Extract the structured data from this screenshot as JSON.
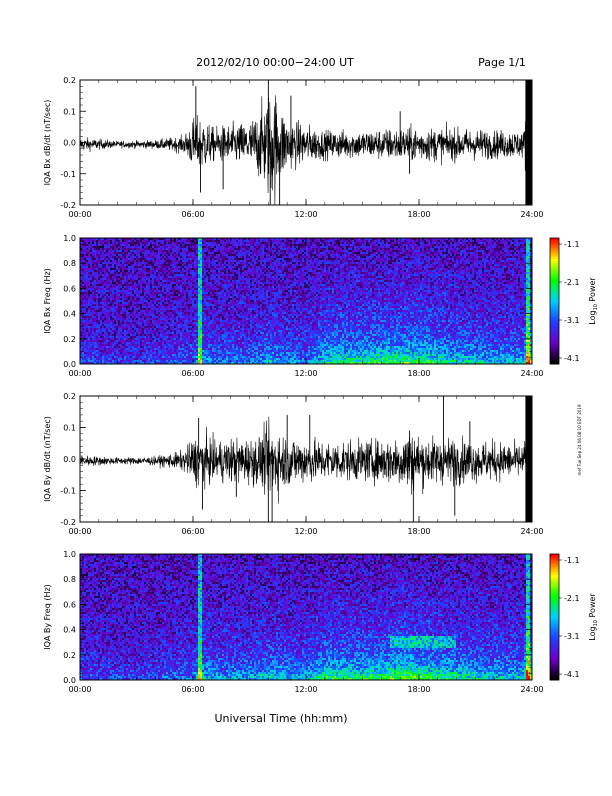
{
  "header": {
    "title": "2012/02/10   00:00−24:00 UT",
    "page": "Page 1/1"
  },
  "footer": {
    "xlabel": "Universal Time (hh:mm)",
    "side_note": "mef Tue Sep 24 06:08:10 EDT 2019"
  },
  "colorbar": {
    "label_base": "Log",
    "label_sub": "10",
    "label_rest": " Power",
    "ticks": [
      "-1.1",
      "-2.1",
      "-3.1",
      "-4.1"
    ],
    "colors": [
      "#ff0000",
      "#ffff00",
      "#00ff00",
      "#00cfff",
      "#2040ff",
      "#6a00c8",
      "#000000"
    ]
  },
  "chart_data": [
    {
      "type": "line",
      "ylabel": "IQA Bx dB/dt (nT/sec)",
      "xlim": [
        "00:00",
        "24:00"
      ],
      "ylim": [
        -0.2,
        0.2
      ],
      "xticks": [
        "00:00",
        "06:00",
        "12:00",
        "18:00",
        "24:00"
      ],
      "yticks": [
        "-0.2",
        "-0.1",
        "0.0",
        "0.1",
        "0.2"
      ],
      "ytick_values": [
        -0.2,
        -0.1,
        0.0,
        0.1,
        0.2
      ],
      "series_color": "#000000",
      "envelope": {
        "x_hours": [
          0,
          2,
          4,
          5.5,
          6.0,
          6.5,
          7,
          8,
          9,
          9.5,
          10,
          10.3,
          10.6,
          11,
          12,
          13,
          14,
          15,
          16,
          17,
          18,
          19,
          20,
          21,
          22,
          23,
          23.6,
          23.7,
          24
        ],
        "amplitude": [
          0.025,
          0.012,
          0.015,
          0.03,
          0.09,
          0.1,
          0.06,
          0.07,
          0.08,
          0.12,
          0.19,
          0.2,
          0.15,
          0.09,
          0.07,
          0.05,
          0.05,
          0.05,
          0.055,
          0.06,
          0.06,
          0.06,
          0.055,
          0.055,
          0.05,
          0.05,
          0.05,
          0.2,
          0.2
        ]
      },
      "spikes": [
        {
          "x_hours": 6.15,
          "y": 0.18
        },
        {
          "x_hours": 6.4,
          "y": -0.16
        },
        {
          "x_hours": 7.6,
          "y": -0.15
        },
        {
          "x_hours": 10.0,
          "y": 0.2
        },
        {
          "x_hours": 10.1,
          "y": -0.2
        },
        {
          "x_hours": 10.6,
          "y": -0.2
        },
        {
          "x_hours": 11.2,
          "y": 0.15
        },
        {
          "x_hours": 17.0,
          "y": 0.1
        },
        {
          "x_hours": 17.5,
          "y": -0.1
        }
      ]
    },
    {
      "type": "heatmap",
      "ylabel": "IQA Bx Freq (Hz)",
      "xlim": [
        "00:00",
        "24:00"
      ],
      "ylim": [
        0.0,
        1.0
      ],
      "xticks": [
        "00:00",
        "06:00",
        "12:00",
        "18:00",
        "24:00"
      ],
      "yticks": [
        "0.0",
        "0.2",
        "0.4",
        "0.6",
        "0.8",
        "1.0"
      ],
      "ytick_values": [
        0.0,
        0.2,
        0.4,
        0.6,
        0.8,
        1.0
      ],
      "zlim": [
        -4.1,
        -1.1
      ],
      "activity_hours": [
        0,
        3,
        6,
        6.4,
        7,
        9,
        10.2,
        11,
        12,
        13.3,
        15,
        17,
        18,
        20,
        22,
        23.5,
        23.8,
        24
      ],
      "activity_level": [
        0.2,
        0.15,
        0.3,
        0.55,
        0.35,
        0.35,
        0.5,
        0.4,
        0.35,
        0.7,
        0.7,
        0.8,
        0.75,
        0.6,
        0.5,
        0.5,
        1.0,
        0.9
      ],
      "striations_hours": [
        6.4,
        23.8
      ]
    },
    {
      "type": "line",
      "ylabel": "IQA By dB/dt (nT/sec)",
      "xlim": [
        "00:00",
        "24:00"
      ],
      "ylim": [
        -0.2,
        0.2
      ],
      "xticks": [
        "00:00",
        "06:00",
        "12:00",
        "18:00",
        "24:00"
      ],
      "yticks": [
        "-0.2",
        "-0.1",
        "0.0",
        "0.1",
        "0.2"
      ],
      "ytick_values": [
        -0.2,
        -0.1,
        0.0,
        0.1,
        0.2
      ],
      "series_color": "#000000",
      "envelope": {
        "x_hours": [
          0,
          2,
          4,
          5.5,
          6.0,
          6.5,
          7,
          8,
          9,
          9.5,
          10,
          10.3,
          10.6,
          11,
          12,
          13,
          14,
          15,
          16,
          17,
          17.5,
          18,
          19,
          20,
          21,
          22,
          23,
          23.6,
          23.7,
          24
        ],
        "amplitude": [
          0.02,
          0.012,
          0.015,
          0.035,
          0.08,
          0.1,
          0.07,
          0.08,
          0.08,
          0.09,
          0.12,
          0.14,
          0.11,
          0.09,
          0.08,
          0.07,
          0.07,
          0.07,
          0.075,
          0.09,
          0.12,
          0.09,
          0.08,
          0.08,
          0.07,
          0.07,
          0.06,
          0.06,
          0.2,
          0.2
        ]
      },
      "spikes": [
        {
          "x_hours": 6.3,
          "y": 0.13
        },
        {
          "x_hours": 6.5,
          "y": -0.16
        },
        {
          "x_hours": 8.3,
          "y": -0.12
        },
        {
          "x_hours": 10.0,
          "y": -0.2
        },
        {
          "x_hours": 10.2,
          "y": -0.2
        },
        {
          "x_hours": 11.0,
          "y": 0.14
        },
        {
          "x_hours": 12.2,
          "y": 0.14
        },
        {
          "x_hours": 17.7,
          "y": -0.2
        },
        {
          "x_hours": 17.5,
          "y": 0.09
        },
        {
          "x_hours": 19.3,
          "y": 0.2
        },
        {
          "x_hours": 19.9,
          "y": -0.18
        },
        {
          "x_hours": 20.7,
          "y": 0.12
        }
      ]
    },
    {
      "type": "heatmap",
      "ylabel": "IQA By Freq (Hz)",
      "xlim": [
        "00:00",
        "24:00"
      ],
      "ylim": [
        0.0,
        1.0
      ],
      "xticks": [
        "00:00",
        "06:00",
        "12:00",
        "18:00",
        "24:00"
      ],
      "yticks": [
        "0.0",
        "0.2",
        "0.4",
        "0.6",
        "0.8",
        "1.0"
      ],
      "ytick_values": [
        0.0,
        0.2,
        0.4,
        0.6,
        0.8,
        1.0
      ],
      "zlim": [
        -4.1,
        -1.1
      ],
      "activity_hours": [
        0,
        3,
        6,
        6.4,
        7,
        9,
        10.2,
        11,
        12,
        13.3,
        15,
        17,
        18,
        20,
        22,
        23.5,
        23.8,
        24
      ],
      "activity_level": [
        0.25,
        0.2,
        0.35,
        0.6,
        0.45,
        0.45,
        0.55,
        0.5,
        0.45,
        0.75,
        0.7,
        0.85,
        0.8,
        0.65,
        0.55,
        0.55,
        1.0,
        0.9
      ],
      "striations_hours": [
        6.4,
        23.8
      ],
      "bands": [
        {
          "from_hours": 16.5,
          "to_hours": 20.0,
          "freq": 0.3
        }
      ]
    }
  ]
}
